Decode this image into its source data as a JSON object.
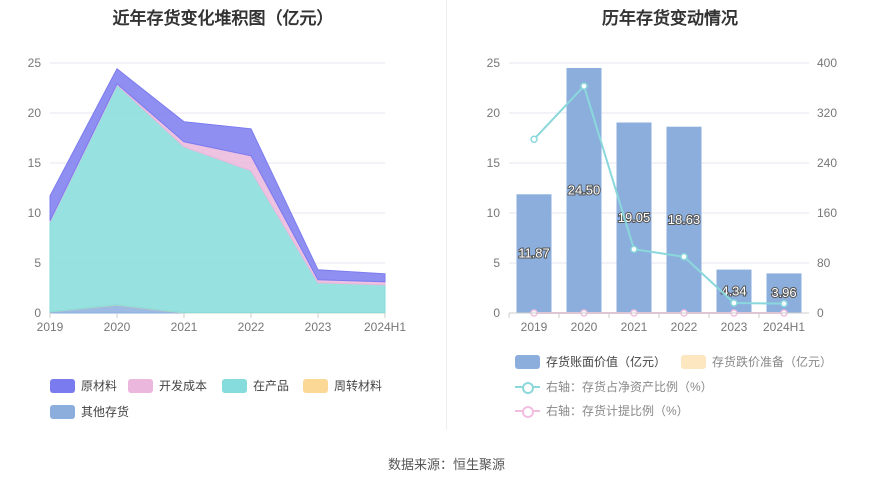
{
  "source": "数据来源：恒生聚源",
  "chart_data": [
    {
      "type": "area",
      "stacked": true,
      "title": "近年存货变化堆积图（亿元）",
      "categories": [
        "2019",
        "2020",
        "2021",
        "2022",
        "2023",
        "2024H1"
      ],
      "ylim": [
        0,
        25
      ],
      "yticks": [
        0,
        5,
        10,
        15,
        20,
        25
      ],
      "grid": true,
      "legend_position": "bottom-left",
      "series": [
        {
          "name": "原材料",
          "color": "#7b7bf0",
          "values": [
            2.5,
            1.5,
            2.0,
            2.7,
            1.0,
            0.8
          ]
        },
        {
          "name": "开发成本",
          "color": "#ebb7dc",
          "values": [
            0.1,
            0.1,
            0.5,
            1.5,
            0.3,
            0.3
          ]
        },
        {
          "name": "在产品",
          "color": "#86dcdc",
          "values": [
            9.0,
            22.0,
            16.6,
            14.2,
            3.0,
            2.8
          ]
        },
        {
          "name": "周转材料",
          "color": "#fcd896",
          "values": [
            0.02,
            0.02,
            0.02,
            0.02,
            0.02,
            0.02
          ]
        },
        {
          "name": "其他存货",
          "color": "#8caedd",
          "values": [
            0.1,
            0.8,
            0.0,
            0.0,
            0.0,
            0.0
          ]
        }
      ]
    },
    {
      "type": "bar",
      "title": "历年存货变动情况",
      "categories": [
        "2019",
        "2020",
        "2021",
        "2022",
        "2023",
        "2024H1"
      ],
      "ylim": [
        0,
        25
      ],
      "yticks": [
        0,
        5,
        10,
        15,
        20,
        25
      ],
      "y2lim": [
        0,
        400
      ],
      "y2ticks": [
        0,
        80,
        160,
        240,
        320,
        400
      ],
      "grid": true,
      "legend_position": "bottom-left",
      "series": [
        {
          "name": "存货账面价值（亿元）",
          "type": "bar",
          "axis": "left",
          "color": "#8caedd",
          "values": [
            11.87,
            24.5,
            19.05,
            18.63,
            4.34,
            3.96
          ],
          "labels": [
            "11.87",
            "24.50",
            "19.05",
            "18.63",
            "4.34",
            "3.96"
          ]
        },
        {
          "name": "存货跌价准备（亿元）",
          "type": "bar",
          "axis": "left",
          "color": "#fde7c0",
          "values": [
            0,
            0,
            0,
            0,
            0,
            0
          ]
        },
        {
          "name": "右轴：存货占净资产比例（%）",
          "type": "line",
          "axis": "right",
          "color": "#8ad8dc",
          "values": [
            278,
            363,
            102,
            90,
            16,
            15
          ]
        },
        {
          "name": "右轴：存货计提比例（%）",
          "type": "line",
          "axis": "right",
          "color": "#f0bfdf",
          "values": [
            0,
            0,
            0,
            0,
            0,
            0
          ]
        }
      ]
    }
  ]
}
